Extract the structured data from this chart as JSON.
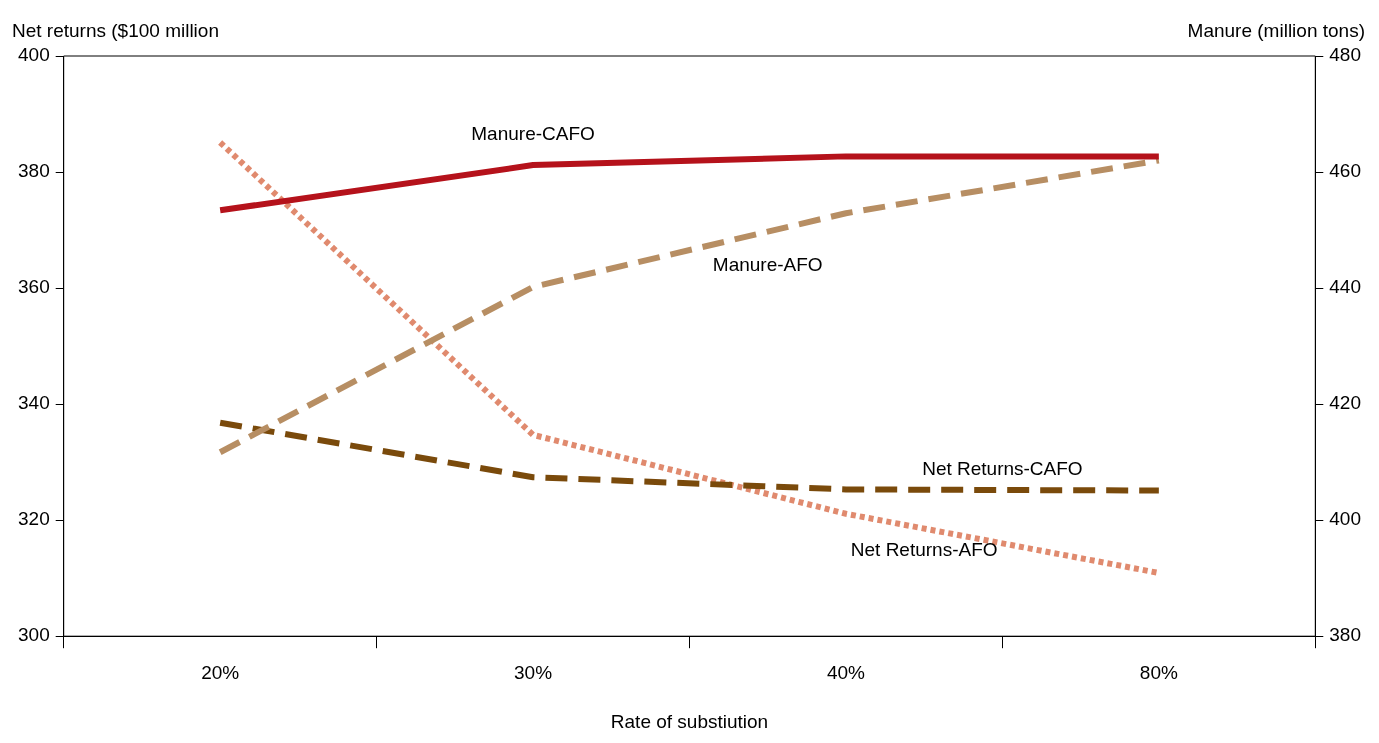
{
  "chart_data": {
    "type": "line",
    "xlabel": "Rate of substiution",
    "ylabel": "Net returns ($100 million",
    "y2label": "Manure (million tons)",
    "categories": [
      "20%",
      "30%",
      "40%",
      "80%"
    ],
    "series": [
      {
        "name": "Manure-CAFO",
        "color": "#b5121b",
        "axis": "y2",
        "line_style": "solid",
        "values": [
          453.4,
          461.2,
          462.7,
          462.7
        ]
      },
      {
        "name": "Manure-AFO",
        "color": "#b78e63",
        "axis": "y2",
        "line_style": "dashed",
        "values": [
          411.7,
          440.2,
          452.9,
          462
        ]
      },
      {
        "name": "Net Returns-CAFO",
        "color": "#7a4a0b",
        "axis": "y",
        "line_style": "dashed",
        "values": [
          336.8,
          327.4,
          325.3,
          325.1
        ]
      },
      {
        "name": "Net Returns-AFO",
        "color": "#e08a6e",
        "axis": "y",
        "line_style": "dotted",
        "values": [
          385.1,
          334.7,
          321.1,
          310.9
        ]
      }
    ],
    "ylim": [
      300,
      400
    ],
    "yticks": [
      300,
      320,
      340,
      360,
      380,
      400
    ],
    "y2lim": [
      380,
      480
    ],
    "y2ticks": [
      380,
      400,
      420,
      440,
      460,
      480
    ],
    "grid": false,
    "legend": false,
    "marker": "none"
  }
}
